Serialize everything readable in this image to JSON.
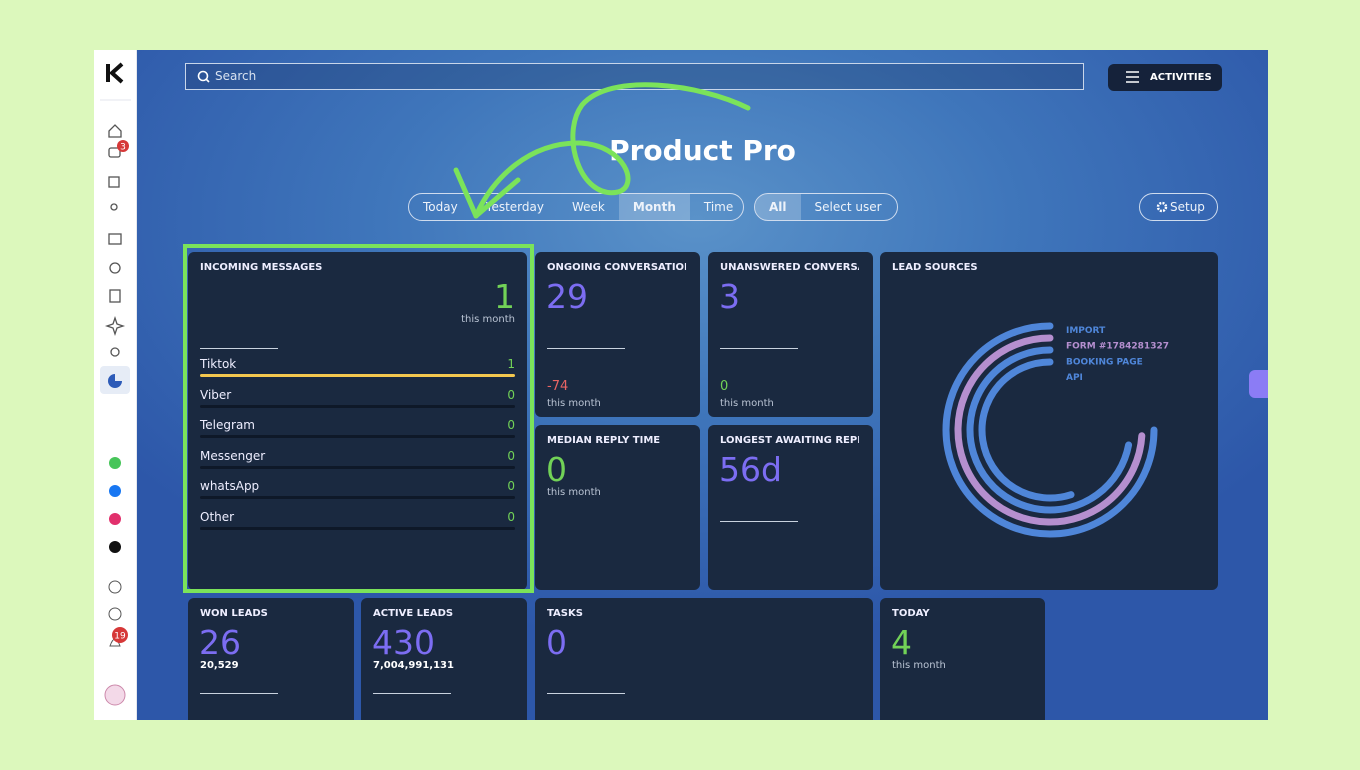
{
  "header": {
    "search": "Search",
    "activities": "ACTIVITIES",
    "title": "Product Pro"
  },
  "sidebar": {
    "messages_badge": "3",
    "notifications_badge": "19"
  },
  "filters": {
    "periods": [
      "Today",
      "Yesterday",
      "Week",
      "Month",
      "Time"
    ],
    "active_period": "Month",
    "users": [
      "All",
      "Select user"
    ],
    "setup": "Setup"
  },
  "cards": {
    "incoming": {
      "title": "INCOMING MESSAGES",
      "value": 1,
      "sub": "this month",
      "channels": [
        {
          "name": "Tiktok",
          "value": 1,
          "color": "#f3c74f"
        },
        {
          "name": "Viber",
          "value": 0,
          "color": "#8e5fd0"
        },
        {
          "name": "Telegram",
          "value": 0,
          "color": "#3aa0db"
        },
        {
          "name": "Messenger",
          "value": 0,
          "color": "#2f7cf0"
        },
        {
          "name": "whatsApp",
          "value": 0,
          "color": "#47c55a"
        },
        {
          "name": "Other",
          "value": 0,
          "color": "#888"
        }
      ]
    },
    "ongoing": {
      "title": "ONGOING CONVERSATIONS",
      "value": 29,
      "change": -74,
      "sub": "this month"
    },
    "unanswered": {
      "title": "UNANSWERED CONVERSATIONS",
      "value": 3,
      "change": 0,
      "sub": "this month"
    },
    "lead_sources": {
      "title": "LEAD SOURCES",
      "series": [
        {
          "name": "IMPORT",
          "value": 75,
          "color": "#4f86d9"
        },
        {
          "name": "FORM #1784281327",
          "value": 74,
          "color": "#b58fcf"
        },
        {
          "name": "BOOKING PAGE",
          "value": 72,
          "color": "#4f86d9"
        },
        {
          "name": "API",
          "value": 55,
          "color": "#4f86d9"
        }
      ]
    },
    "median": {
      "title": "MEDIAN REPLY TIME",
      "value": 0,
      "sub": "this month"
    },
    "longest": {
      "title": "LONGEST AWAITING REPLY",
      "value": "56d"
    },
    "won": {
      "title": "WON LEADS",
      "value": 26,
      "total": "20,529"
    },
    "active": {
      "title": "ACTIVE LEADS",
      "value": 430,
      "total": "7,004,991,131"
    },
    "tasks": {
      "title": "TASKS",
      "value": 0
    },
    "today": {
      "title": "TODAY",
      "value": 4,
      "sub": "this month"
    }
  }
}
